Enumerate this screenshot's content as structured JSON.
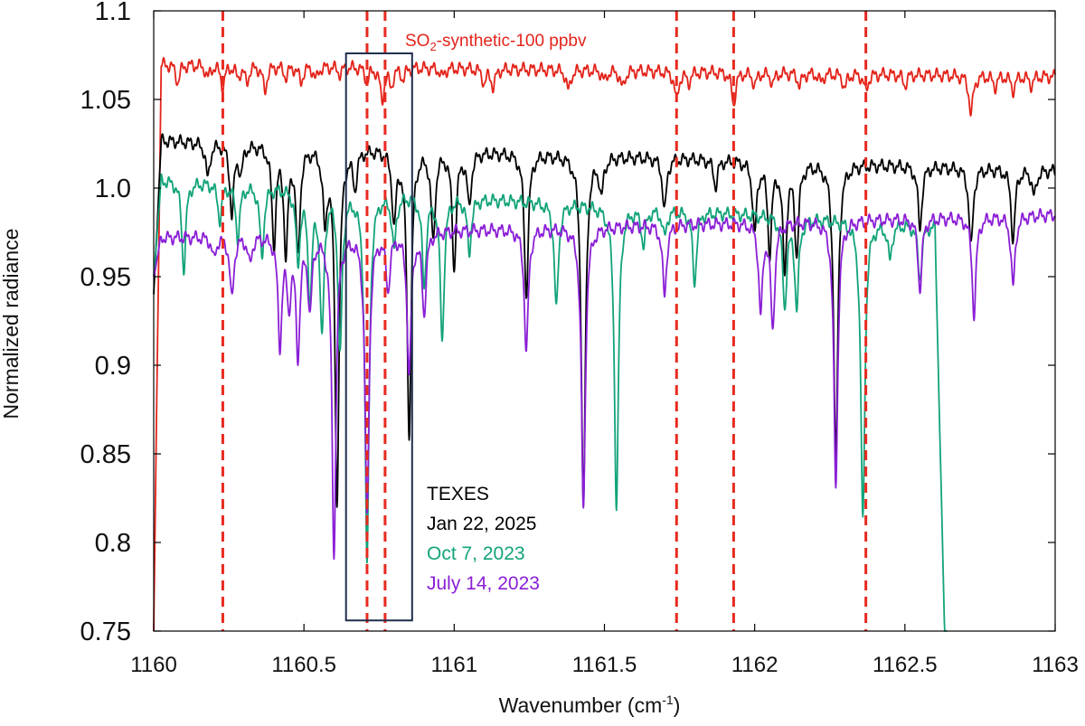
{
  "chart_data": {
    "type": "line",
    "title": "",
    "xlabel": "Wavenumber (cm",
    "xlabel_sup": "-1",
    "xlabel_suffix": ")",
    "ylabel": "Normalized radiance",
    "xlim": [
      1160,
      1163
    ],
    "ylim": [
      0.75,
      1.1
    ],
    "x_ticks": [
      1160,
      1160.5,
      1161,
      1161.5,
      1162,
      1162.5,
      1163
    ],
    "x_tick_labels": [
      "1160",
      "1160.5",
      "1161",
      "1161.5",
      "1162",
      "1162.5",
      "1163"
    ],
    "y_ticks": [
      0.75,
      0.8,
      0.85,
      0.9,
      0.95,
      1.0,
      1.05,
      1.1
    ],
    "y_tick_labels": [
      "0.75",
      "0.8",
      "0.85",
      "0.9",
      "0.95",
      "1.0",
      "1.05",
      "1.1"
    ],
    "grid": false,
    "vertical_markers": [
      1160.23,
      1160.71,
      1160.77,
      1161.74,
      1161.93,
      1162.37
    ],
    "highlight_box": {
      "x_range": [
        1160.64,
        1160.86
      ],
      "y_range": [
        0.756,
        1.076
      ]
    },
    "synthetic_label": {
      "prefix": "SO",
      "sub": "2",
      "suffix": "-synthetic-100 ppbv"
    },
    "legend": {
      "title": "TEXES",
      "entries": [
        "Jan 22, 2025",
        "Oct 7, 2023",
        "July 14, 2023"
      ]
    },
    "series": [
      {
        "name": "SO2-synthetic-100 ppbv",
        "color": "#e3241b",
        "baseline": 1.07,
        "baseline_end": 1.063,
        "start_drop": 0.75,
        "dips": [
          [
            1160.08,
            0.01
          ],
          [
            1160.18,
            0.007
          ],
          [
            1160.23,
            0.012
          ],
          [
            1160.28,
            0.006
          ],
          [
            1160.31,
            0.009
          ],
          [
            1160.37,
            0.014
          ],
          [
            1160.44,
            0.006
          ],
          [
            1160.49,
            0.009
          ],
          [
            1160.54,
            0.007
          ],
          [
            1160.62,
            0.004
          ],
          [
            1160.71,
            0.008
          ],
          [
            1160.76,
            0.018
          ],
          [
            1160.79,
            0.01
          ],
          [
            1160.83,
            0.006
          ],
          [
            1160.96,
            0.005
          ],
          [
            1161.1,
            0.008
          ],
          [
            1161.13,
            0.01
          ],
          [
            1161.38,
            0.012
          ],
          [
            1161.5,
            0.006
          ],
          [
            1161.56,
            0.01
          ],
          [
            1161.74,
            0.016
          ],
          [
            1161.78,
            0.006
          ],
          [
            1161.93,
            0.018
          ],
          [
            1162.0,
            0.007
          ],
          [
            1162.06,
            0.006
          ],
          [
            1162.15,
            0.007
          ],
          [
            1162.22,
            0.005
          ],
          [
            1162.3,
            0.008
          ],
          [
            1162.37,
            0.01
          ],
          [
            1162.5,
            0.006
          ],
          [
            1162.72,
            0.022
          ],
          [
            1162.8,
            0.006
          ],
          [
            1162.86,
            0.008
          ],
          [
            1162.92,
            0.005
          ]
        ]
      },
      {
        "name": "Jan 22, 2025",
        "color": "#000000",
        "baseline": 1.027,
        "baseline_end": 1.01,
        "start_drop": 0.94,
        "dips": [
          [
            1160.18,
            0.02
          ],
          [
            1160.26,
            0.04
          ],
          [
            1160.29,
            0.015
          ],
          [
            1160.4,
            0.055
          ],
          [
            1160.44,
            0.06
          ],
          [
            1160.48,
            0.06
          ],
          [
            1160.57,
            0.04
          ],
          [
            1160.61,
            0.2
          ],
          [
            1160.67,
            0.02
          ],
          [
            1160.8,
            0.04
          ],
          [
            1160.85,
            0.16
          ],
          [
            1160.93,
            0.05
          ],
          [
            1161.0,
            0.065
          ],
          [
            1161.05,
            0.03
          ],
          [
            1161.24,
            0.08
          ],
          [
            1161.43,
            0.2
          ],
          [
            1161.49,
            0.02
          ],
          [
            1161.7,
            0.03
          ],
          [
            1161.87,
            0.015
          ],
          [
            1162.0,
            0.04
          ],
          [
            1162.05,
            0.05
          ],
          [
            1162.1,
            0.06
          ],
          [
            1162.14,
            0.05
          ],
          [
            1162.27,
            0.17
          ],
          [
            1162.55,
            0.035
          ],
          [
            1162.72,
            0.045
          ],
          [
            1162.86,
            0.04
          ],
          [
            1162.93,
            0.015
          ]
        ]
      },
      {
        "name": "Oct 7, 2023",
        "color": "#12a37a",
        "baseline": 1.005,
        "baseline_end": 0.975,
        "start_drop": 0.95,
        "dips": [
          [
            1160.1,
            0.05
          ],
          [
            1160.22,
            0.02
          ],
          [
            1160.28,
            0.03
          ],
          [
            1160.36,
            0.04
          ],
          [
            1160.48,
            0.04
          ],
          [
            1160.52,
            0.06
          ],
          [
            1160.56,
            0.08
          ],
          [
            1160.62,
            0.09
          ],
          [
            1160.71,
            0.21
          ],
          [
            1160.8,
            0.03
          ],
          [
            1160.9,
            0.05
          ],
          [
            1160.96,
            0.08
          ],
          [
            1161.05,
            0.03
          ],
          [
            1161.34,
            0.06
          ],
          [
            1161.54,
            0.17
          ],
          [
            1161.63,
            0.02
          ],
          [
            1161.7,
            0.015
          ],
          [
            1161.8,
            0.04
          ],
          [
            1162.1,
            0.05
          ],
          [
            1162.14,
            0.05
          ],
          [
            1162.36,
            0.17
          ],
          [
            1162.45,
            0.02
          ],
          [
            1162.55,
            0.03
          ],
          [
            1162.72,
            0.02
          ],
          [
            1162.85,
            0.015
          ]
        ],
        "dropout": {
          "start": 1162.6,
          "end": 1162.64
        }
      },
      {
        "name": "July 14, 2023",
        "color": "#8b1fd6",
        "baseline": 0.972,
        "baseline_end": 0.985,
        "start_drop": 0.95,
        "dips": [
          [
            1160.2,
            0.012
          ],
          [
            1160.26,
            0.035
          ],
          [
            1160.32,
            0.015
          ],
          [
            1160.42,
            0.06
          ],
          [
            1160.45,
            0.035
          ],
          [
            1160.48,
            0.065
          ],
          [
            1160.52,
            0.04
          ],
          [
            1160.6,
            0.18
          ],
          [
            1160.71,
            0.16
          ],
          [
            1160.78,
            0.03
          ],
          [
            1160.85,
            0.08
          ],
          [
            1160.9,
            0.045
          ],
          [
            1161.24,
            0.07
          ],
          [
            1161.43,
            0.16
          ],
          [
            1161.7,
            0.04
          ],
          [
            1162.02,
            0.05
          ],
          [
            1162.06,
            0.06
          ],
          [
            1162.27,
            0.15
          ],
          [
            1162.55,
            0.04
          ],
          [
            1162.73,
            0.055
          ],
          [
            1162.86,
            0.04
          ]
        ]
      }
    ]
  }
}
